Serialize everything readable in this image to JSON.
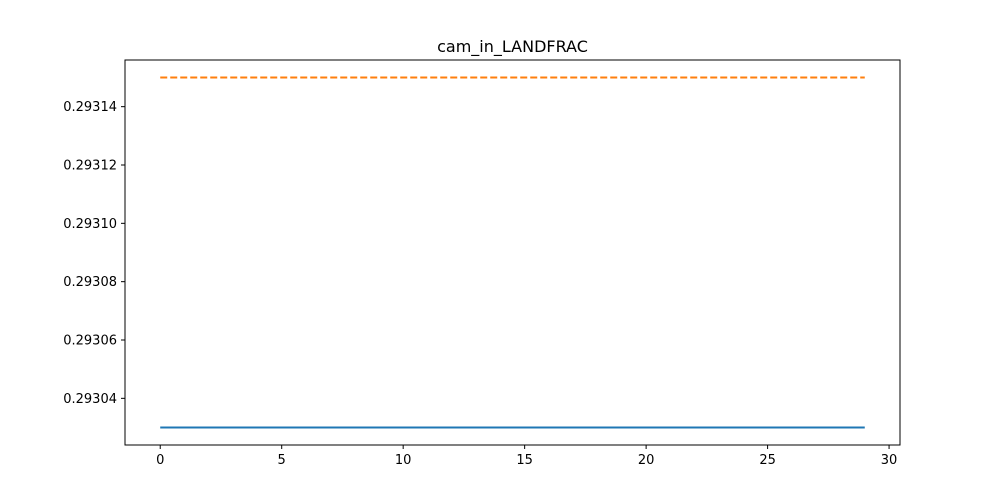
{
  "chart_data": {
    "type": "line",
    "title": "cam_in_LANDFRAC",
    "xlabel": "",
    "ylabel": "",
    "xlim": [
      -1.45,
      30.45
    ],
    "ylim": [
      0.293024,
      0.293156
    ],
    "x_ticks": [
      0,
      5,
      10,
      15,
      20,
      25,
      30
    ],
    "y_ticks": [
      0.29304,
      0.29306,
      0.29308,
      0.2931,
      0.29312,
      0.29314
    ],
    "y_tick_labels": [
      "0.29304",
      "0.29306",
      "0.29308",
      "0.29310",
      "0.29312",
      "0.29314"
    ],
    "grid": false,
    "legend": null,
    "series": [
      {
        "x": [
          0,
          29
        ],
        "values": [
          0.29303,
          0.29303
        ],
        "color": "#1f77b4",
        "style": "solid"
      },
      {
        "x": [
          0,
          29
        ],
        "values": [
          0.29315,
          0.29315
        ],
        "color": "#ff7f0e",
        "style": "dashed"
      }
    ]
  }
}
